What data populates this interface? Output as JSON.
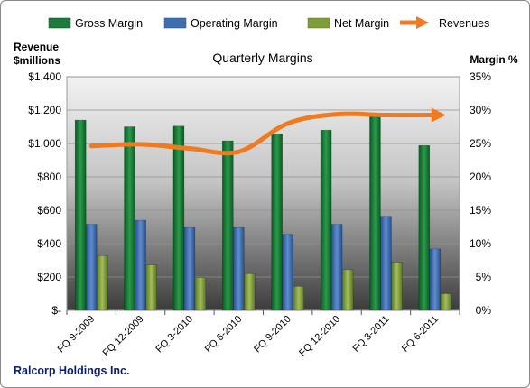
{
  "chart_data": {
    "type": "bar",
    "title": "Quarterly Margins",
    "left_axis_title": [
      "Revenue",
      "$millions"
    ],
    "right_axis_title": "Margin %",
    "footer": "Ralcorp Holdings Inc.",
    "categories": [
      "FQ 9-2009",
      "FQ 12-2009",
      "FQ 3-2010",
      "FQ 6-2010",
      "FQ 9-2010",
      "FQ 12-2010",
      "FQ 3-2011",
      "FQ 6-2011"
    ],
    "left_axis": {
      "ylim": [
        0,
        1400
      ],
      "tick_labels": [
        "$-",
        "$200",
        "$400",
        "$600",
        "$800",
        "$1,000",
        "$1,200",
        "$1,400"
      ],
      "tick_values": [
        0,
        200,
        400,
        600,
        800,
        1000,
        1200,
        1400
      ]
    },
    "right_axis": {
      "ylim": [
        0,
        35
      ],
      "tick_labels": [
        "0%",
        "5%",
        "10%",
        "15%",
        "20%",
        "25%",
        "30%",
        "35%"
      ],
      "tick_values": [
        0,
        5,
        10,
        15,
        20,
        25,
        30,
        35
      ]
    },
    "series": [
      {
        "name": "Gross Margin",
        "kind": "bar",
        "axis": "right",
        "color": "#1e7a3c",
        "values": [
          28.5,
          27.5,
          27.6,
          25.4,
          26.4,
          27.0,
          29.0,
          24.7
        ]
      },
      {
        "name": "Operating Margin",
        "kind": "bar",
        "axis": "right",
        "color": "#3e6db0",
        "values": [
          12.9,
          13.5,
          12.4,
          12.4,
          11.4,
          12.9,
          14.1,
          9.2
        ]
      },
      {
        "name": "Net Margin",
        "kind": "bar",
        "axis": "right",
        "color": "#7f9c3a",
        "values": [
          8.2,
          6.8,
          4.9,
          5.5,
          3.6,
          6.1,
          7.2,
          2.5
        ]
      },
      {
        "name": "Revenues",
        "kind": "line",
        "axis": "left",
        "color": "#ef7a1f",
        "values": [
          985,
          995,
          970,
          950,
          1120,
          1175,
          1170,
          1170
        ]
      }
    ],
    "grid": true,
    "legend_position": "top"
  }
}
